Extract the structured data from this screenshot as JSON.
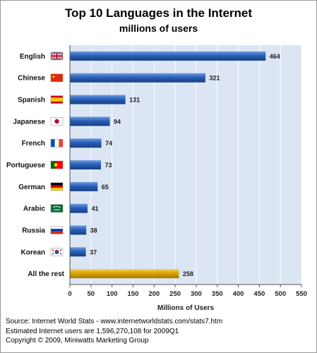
{
  "chart_data": {
    "type": "bar",
    "orientation": "horizontal",
    "title": "Top 10 Languages in the Internet",
    "subtitle": "millions of users",
    "xlabel": "Millions of Users",
    "ylabel": "",
    "xlim": [
      0,
      550
    ],
    "xticks": [
      0,
      50,
      100,
      150,
      200,
      250,
      300,
      350,
      400,
      450,
      500,
      550
    ],
    "grid": true,
    "categories": [
      "English",
      "Chinese",
      "Spanish",
      "Japanese",
      "French",
      "Portuguese",
      "German",
      "Arabic",
      "Russia",
      "Korean",
      "All the rest"
    ],
    "values": [
      464,
      321,
      131,
      94,
      74,
      73,
      65,
      41,
      38,
      37,
      258
    ],
    "flags": [
      "uk",
      "china",
      "spain",
      "japan",
      "france",
      "portugal",
      "germany",
      "saudi-arabia",
      "russia",
      "korea",
      ""
    ],
    "colors": {
      "bar": "#2a5fb5",
      "bar_highlight": "#d9a400",
      "plot_background": "#dbe5f3",
      "grid": "#ffffff"
    }
  },
  "footer": {
    "source": "Source: Internet World Stats - www.internetworldstats.com/stats7.htm",
    "estimate": "Estimated Internet users are 1,596,270,108 for 2009Q1",
    "copyright": "Copyright © 2009, Miniwatts Marketing Group"
  }
}
